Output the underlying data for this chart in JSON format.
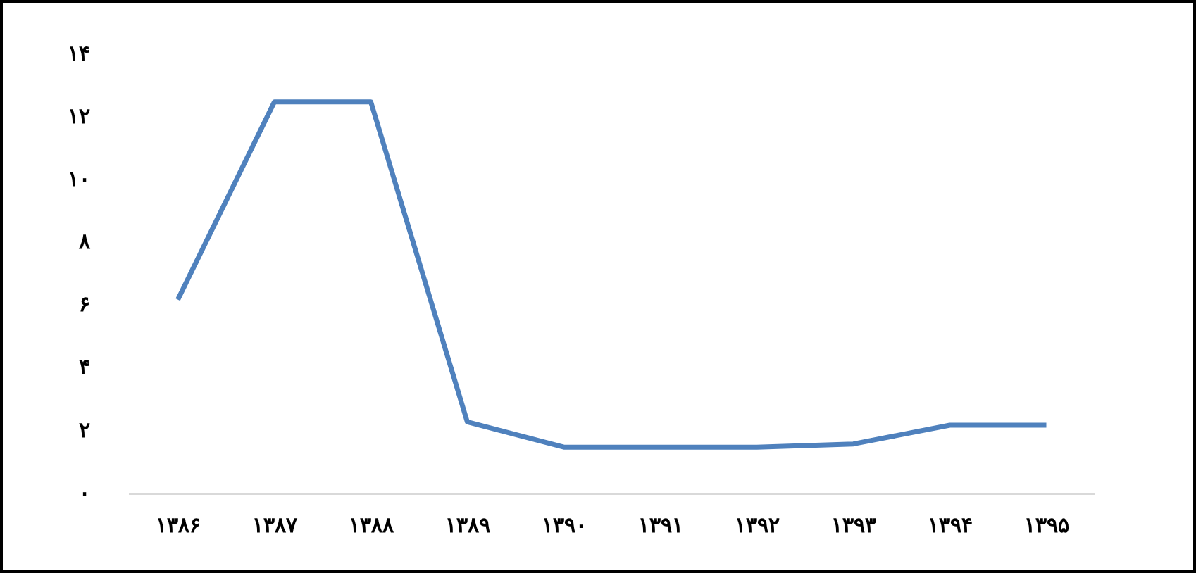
{
  "chart_data": {
    "type": "line",
    "categories": [
      "۱۳۸۶",
      "۱۳۸۷",
      "۱۳۸۸",
      "۱۳۸۹",
      "۱۳۹۰",
      "۱۳۹۱",
      "۱۳۹۲",
      "۱۳۹۳",
      "۱۳۹۴",
      "۱۳۹۵"
    ],
    "series": [
      {
        "color": "#4f81bd",
        "values": [
          6.2,
          12.5,
          12.5,
          2.3,
          1.5,
          1.5,
          1.5,
          1.6,
          2.2,
          2.2
        ]
      }
    ],
    "ylim": [
      0,
      14
    ],
    "yticks": [
      {
        "value": 0,
        "label": "۰"
      },
      {
        "value": 2,
        "label": "۲"
      },
      {
        "value": 4,
        "label": "۴"
      },
      {
        "value": 6,
        "label": "۶"
      },
      {
        "value": 8,
        "label": "۸"
      },
      {
        "value": 10,
        "label": "۱۰"
      },
      {
        "value": 12,
        "label": "۱۲"
      },
      {
        "value": 14,
        "label": "۱۴"
      }
    ],
    "grid": false,
    "legend": false,
    "marker": "none",
    "line_style": "solid"
  }
}
